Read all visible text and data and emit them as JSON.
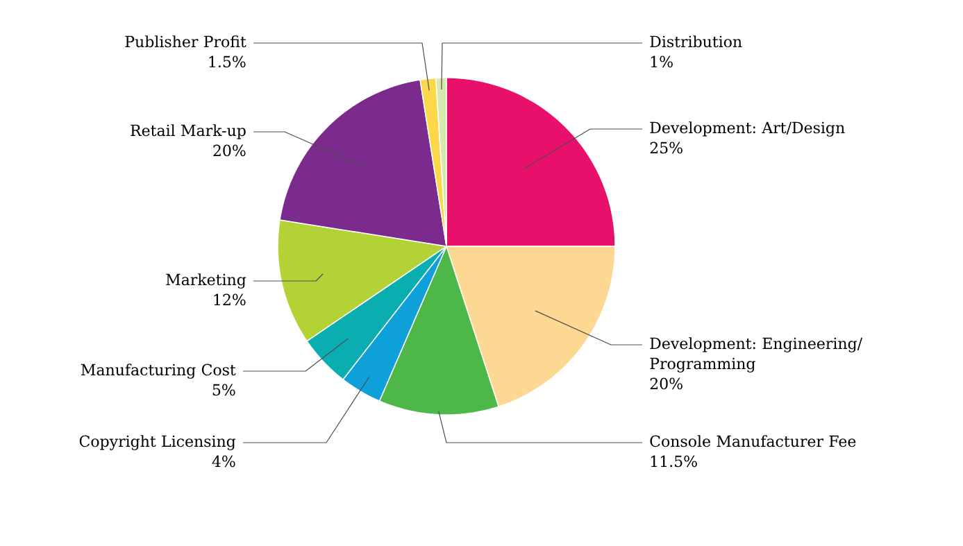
{
  "chart_data": {
    "type": "pie",
    "categories": [
      "Development: Art/Design",
      "Development: Engineering/ Programming",
      "Console Manufacturer Fee",
      "Copyright Licensing",
      "Manufacturing Cost",
      "Marketing",
      "Retail Mark-up",
      "Publisher Profit",
      "Distribution"
    ],
    "values": [
      25,
      20,
      11.5,
      4,
      5,
      12,
      20,
      1.5,
      1
    ],
    "value_labels": [
      "25%",
      "20%",
      "11.5%",
      "4%",
      "5%",
      "12%",
      "20%",
      "1.5%",
      "1%"
    ],
    "colors": [
      "#e8106a",
      "#fdd893",
      "#4db848",
      "#0ea0d8",
      "#0aaeb0",
      "#b2d235",
      "#7b2a8e",
      "#fcd74a",
      "#d8e8b0"
    ]
  }
}
